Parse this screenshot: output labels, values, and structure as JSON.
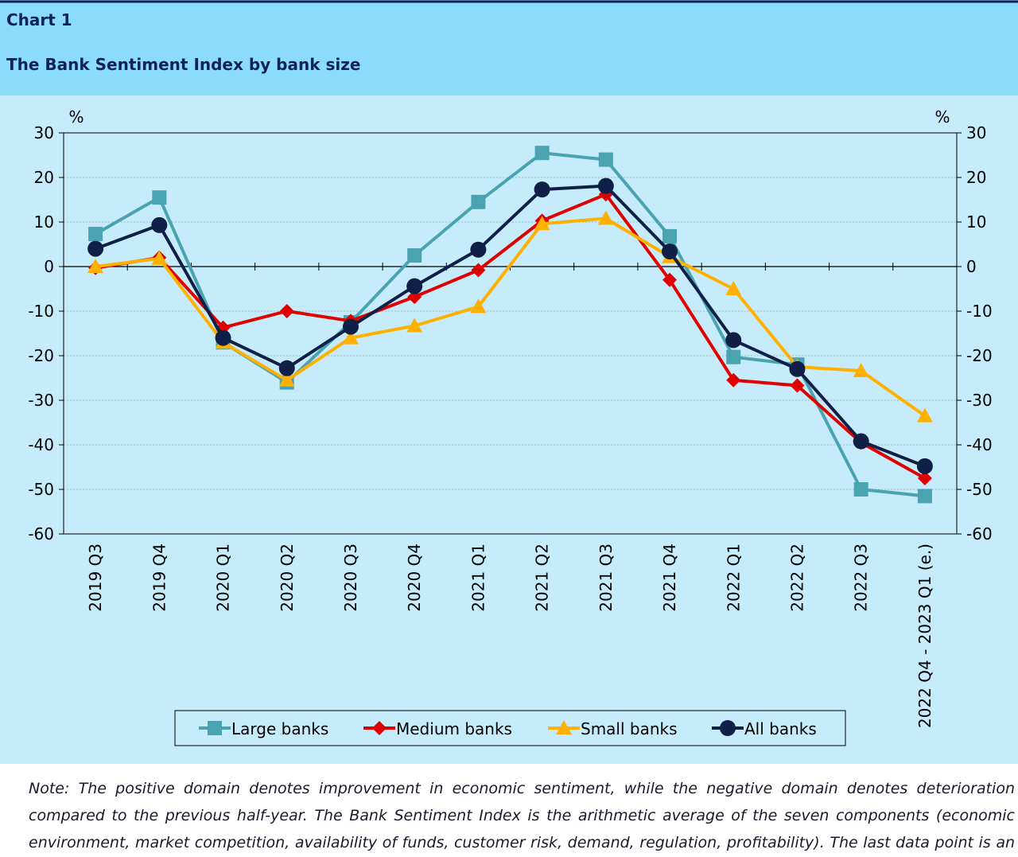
{
  "chart_data": {
    "type": "line",
    "label": "Chart 1",
    "title": "The Bank Sentiment Index by bank size",
    "ylabel": "%",
    "y2label": "%",
    "categories": [
      "2019 Q3",
      "2019 Q4",
      "2020 Q1",
      "2020 Q2",
      "2020 Q3",
      "2020 Q4",
      "2021 Q1",
      "2021 Q2",
      "2021 Q3",
      "2021 Q4",
      "2022 Q1",
      "2022 Q2",
      "2022 Q3",
      "2022 Q4 - 2023 Q1 (e.)"
    ],
    "series": [
      {
        "name": "Large banks",
        "color": "#4aa3b1",
        "marker": "square",
        "values": [
          7.3,
          15.5,
          -17,
          -26,
          -12.5,
          2.5,
          14.5,
          25.5,
          24,
          6.8,
          -20.3,
          -22,
          -50,
          -51.5
        ]
      },
      {
        "name": "Medium banks",
        "color": "#e00000",
        "marker": "diamond",
        "values": [
          -0.3,
          2,
          -13.7,
          -10,
          -12.2,
          -6.8,
          -0.8,
          10.3,
          16.2,
          -3,
          -25.5,
          -26.7,
          -39.5,
          -47.5
        ]
      },
      {
        "name": "Small banks",
        "color": "#ffb000",
        "marker": "triangle",
        "values": [
          0,
          1.8,
          -17,
          -25.5,
          -16,
          -13.3,
          -9,
          9.6,
          10.8,
          2.2,
          -5,
          -22.5,
          -23.4,
          -33.5
        ]
      },
      {
        "name": "All banks",
        "color": "#0f1f47",
        "marker": "circle",
        "values": [
          4,
          9.3,
          -16,
          -22.8,
          -13.5,
          -4.4,
          3.8,
          17.3,
          18.1,
          3.4,
          -16.5,
          -23,
          -39.2,
          -44.8
        ]
      }
    ],
    "ylim": [
      -60,
      30
    ],
    "yticks": [
      30,
      20,
      10,
      0,
      -10,
      -20,
      -30,
      -40,
      -50,
      -60
    ],
    "y2lim": [
      -60,
      30
    ],
    "y2ticks": [
      30,
      20,
      10,
      0,
      -10,
      -20,
      -30,
      -40,
      -50,
      -60
    ],
    "grid": true,
    "legend": "bottom",
    "note": "Note: The positive domain denotes improvement in economic sentiment, while the negative domain denotes deterioration compared to the previous half-year. The Bank Sentiment Index is the arithmetic average of the seven components (economic environment, market competition, availability of funds, customer risk, demand, regulation, profitability). The last data point is an estimation."
  }
}
